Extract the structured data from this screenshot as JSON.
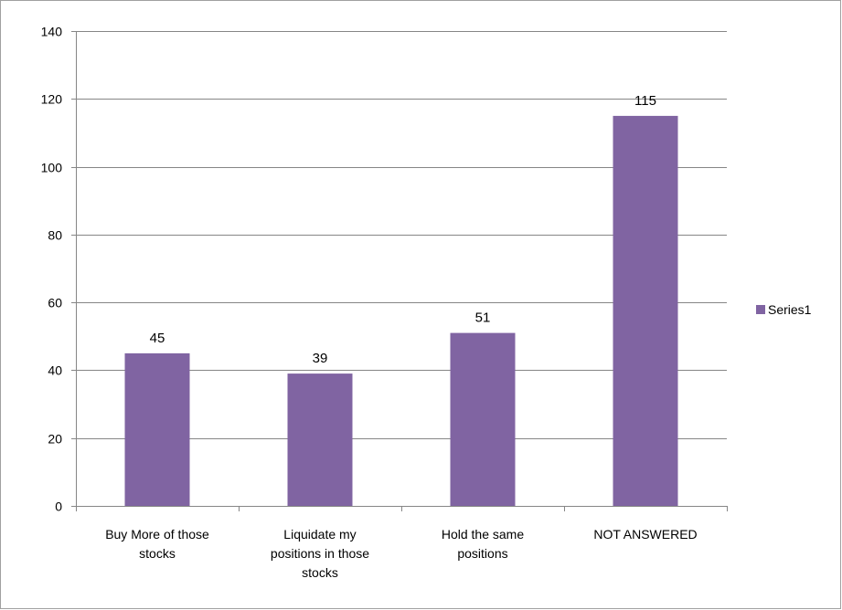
{
  "chart_data": {
    "type": "bar",
    "categories": [
      [
        "Buy More of those",
        "stocks"
      ],
      [
        "Liquidate my",
        "positions in those",
        "stocks"
      ],
      [
        "Hold the  same",
        "positions"
      ],
      [
        "NOT ANSWERED"
      ]
    ],
    "series": [
      {
        "name": "Series1",
        "values": [
          45,
          39,
          51,
          115
        ],
        "color": "#8064a2"
      }
    ],
    "ylim": [
      0,
      140
    ],
    "yticks": [
      0,
      20,
      40,
      60,
      80,
      100,
      120,
      140
    ],
    "title": "",
    "xlabel": "",
    "ylabel": "",
    "grid": "horizontal",
    "legend_position": "right",
    "colors": {
      "grid": "#868686",
      "axis": "#868686",
      "frame": "#a0a0a0"
    }
  }
}
